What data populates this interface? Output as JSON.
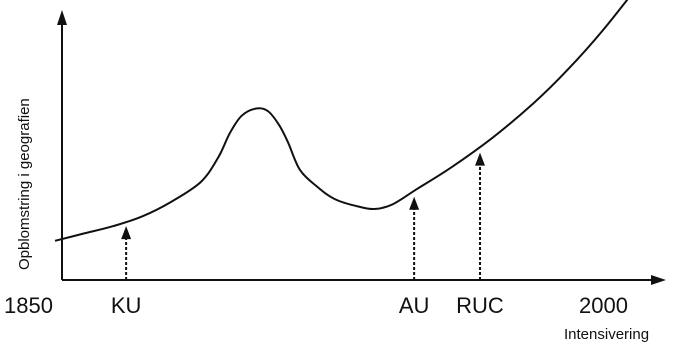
{
  "chart_data": {
    "type": "line",
    "title": "",
    "xlabel": "Intensivering",
    "ylabel": "Opblomstring i geografien",
    "x_tick_labels": [
      "1850",
      "2000"
    ],
    "grid": false,
    "series": [
      {
        "values": [
          [
            0.0,
            0.16
          ],
          [
            0.05,
            0.19
          ],
          [
            0.1,
            0.22
          ],
          [
            0.15,
            0.26
          ],
          [
            0.2,
            0.32
          ],
          [
            0.25,
            0.4
          ],
          [
            0.28,
            0.5
          ],
          [
            0.3,
            0.6
          ],
          [
            0.32,
            0.67
          ],
          [
            0.345,
            0.7
          ],
          [
            0.365,
            0.69
          ],
          [
            0.385,
            0.63
          ],
          [
            0.4,
            0.56
          ],
          [
            0.42,
            0.45
          ],
          [
            0.45,
            0.38
          ],
          [
            0.48,
            0.33
          ],
          [
            0.52,
            0.3
          ],
          [
            0.55,
            0.29
          ],
          [
            0.58,
            0.31
          ],
          [
            0.62,
            0.37
          ],
          [
            0.68,
            0.46
          ],
          [
            0.75,
            0.58
          ],
          [
            0.82,
            0.72
          ],
          [
            0.88,
            0.86
          ],
          [
            0.94,
            1.02
          ],
          [
            1.0,
            1.2
          ]
        ]
      }
    ],
    "markers": [
      {
        "label": "KU",
        "x": 0.122,
        "y": 0.22
      },
      {
        "label": "AU",
        "x": 0.616,
        "y": 0.34
      },
      {
        "label": "RUC",
        "x": 0.729,
        "y": 0.52
      }
    ]
  }
}
